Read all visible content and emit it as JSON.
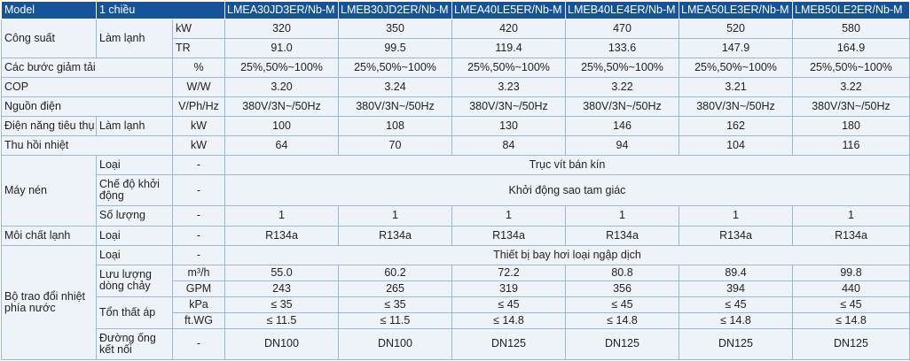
{
  "header": {
    "model": "Model",
    "type": "1 chiều",
    "models": [
      "LMEA30JD3ER/Nb-M",
      "LMEB30JD2ER/Nb-M",
      "LMEA40LE5ER/Nb-M",
      "LMEB40LE4ER/Nb-M",
      "LMEA50LE3ER/Nb-M",
      "LMEB50LE2ER/Nb-M"
    ]
  },
  "rows": {
    "capacity": {
      "label": "Công suất",
      "sub": "Làm lạnh",
      "kw": {
        "unit": "kW",
        "values": [
          "320",
          "350",
          "420",
          "470",
          "520",
          "580"
        ]
      },
      "tr": {
        "unit": "TR",
        "values": [
          "91.0",
          "99.5",
          "119.4",
          "133.6",
          "147.9",
          "164.9"
        ]
      }
    },
    "load_steps": {
      "label": "Các bước giảm tải",
      "unit": "%",
      "values": [
        "25%,50%~100%",
        "25%,50%~100%",
        "25%,50%~100%",
        "25%,50%~100%",
        "25%,50%~100%",
        "25%,50%~100%"
      ]
    },
    "cop": {
      "label": "COP",
      "unit": "W/W",
      "values": [
        "3.20",
        "3.24",
        "3.23",
        "3.22",
        "3.21",
        "3.22"
      ]
    },
    "power_supply": {
      "label": "Nguồn điện",
      "unit": "V/Ph/Hz",
      "values": [
        "380V/3N~/50Hz",
        "380V/3N~/50Hz",
        "380V/3N~/50Hz",
        "380V/3N~/50Hz",
        "380V/3N~/50Hz",
        "380V/3N~/50Hz"
      ]
    },
    "power_input": {
      "label": "Điện năng tiêu thụ",
      "sub": "Làm lạnh",
      "unit": "kW",
      "values": [
        "100",
        "108",
        "130",
        "146",
        "162",
        "180"
      ]
    },
    "heat_recovery": {
      "label": "Thu hồi nhiệt",
      "unit": "kW",
      "values": [
        "64",
        "70",
        "84",
        "94",
        "104",
        "116"
      ]
    },
    "compressor": {
      "label": "Máy nén",
      "type": {
        "sub": "Loại",
        "unit": "-",
        "value": "Trục vít bán kín"
      },
      "start": {
        "sub": "Chế độ khởi động",
        "unit": "-",
        "value": "Khởi động sao tam giác"
      },
      "qty": {
        "sub": "Số lượng",
        "unit": "-",
        "values": [
          "1",
          "1",
          "1",
          "1",
          "1",
          "1"
        ]
      }
    },
    "refrigerant": {
      "label": "Môi chất lạnh",
      "sub": "Loại",
      "unit": "-",
      "values": [
        "R134a",
        "R134a",
        "R134a",
        "R134a",
        "R134a",
        "R134a"
      ]
    },
    "water_hx": {
      "label": "Bộ trao đổi nhiệt phía nước",
      "type": {
        "sub": "Loại",
        "unit": "-",
        "value": "Thiết bị bay hơi loại ngập dịch"
      },
      "flow": {
        "sub": "Lưu lượng dòng chảy",
        "m3h": {
          "unit": "m³/h",
          "values": [
            "55.0",
            "60.2",
            "72.2",
            "80.8",
            "89.4",
            "99.8"
          ]
        },
        "gpm": {
          "unit": "GPM",
          "values": [
            "243",
            "265",
            "319",
            "356",
            "394",
            "440"
          ]
        }
      },
      "pressure_drop": {
        "sub": "Tổn thất áp",
        "kpa": {
          "unit": "kPa",
          "values": [
            "≤ 35",
            "≤ 35",
            "≤ 45",
            "≤ 45",
            "≤ 45",
            "≤ 45"
          ]
        },
        "ftwg": {
          "unit": "ft.WG",
          "values": [
            "≤ 11.5",
            "≤ 11.5",
            "≤ 14.8",
            "≤ 14.8",
            "≤ 14.8",
            "≤ 14.8"
          ]
        }
      },
      "pipe": {
        "sub": "Đường ống kết nối",
        "unit": "-",
        "values": [
          "DN100",
          "DN100",
          "DN125",
          "DN125",
          "DN125",
          "DN125"
        ]
      }
    }
  }
}
